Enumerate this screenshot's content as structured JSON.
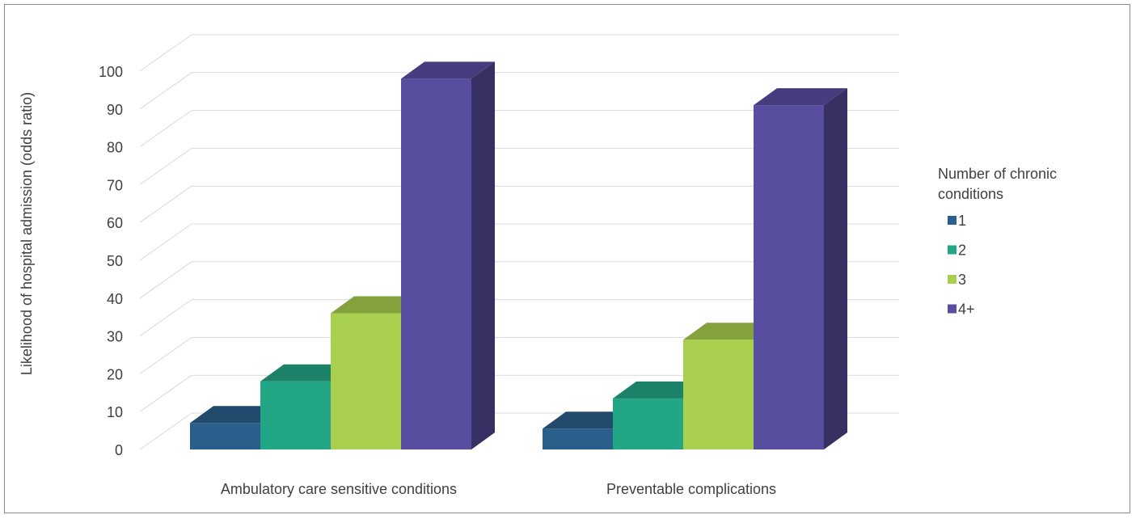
{
  "chart_data": {
    "type": "bar",
    "variant": "3d-clustered-column",
    "ylabel": "Likelihood of hospital admission (odds ratio)",
    "xlabel": "",
    "ylim": [
      0,
      100
    ],
    "yticks": [
      0,
      10,
      20,
      30,
      40,
      50,
      60,
      70,
      80,
      90,
      100
    ],
    "grid": true,
    "categories": [
      "Ambulatory care sensitive conditions",
      "Preventable complications"
    ],
    "series": [
      {
        "name": "1",
        "values": [
          7,
          5.5
        ],
        "color": "#2a5f8c"
      },
      {
        "name": "2",
        "values": [
          18,
          13.5
        ],
        "color": "#22a685"
      },
      {
        "name": "3",
        "values": [
          36,
          29
        ],
        "color": "#a8d04e"
      },
      {
        "name": "4+",
        "values": [
          98,
          91
        ],
        "color": "#584ea0"
      }
    ],
    "legend": {
      "title": "Number of chronic conditions",
      "title_lines": [
        "Number of chronic",
        "conditions"
      ],
      "placement": "right"
    }
  }
}
